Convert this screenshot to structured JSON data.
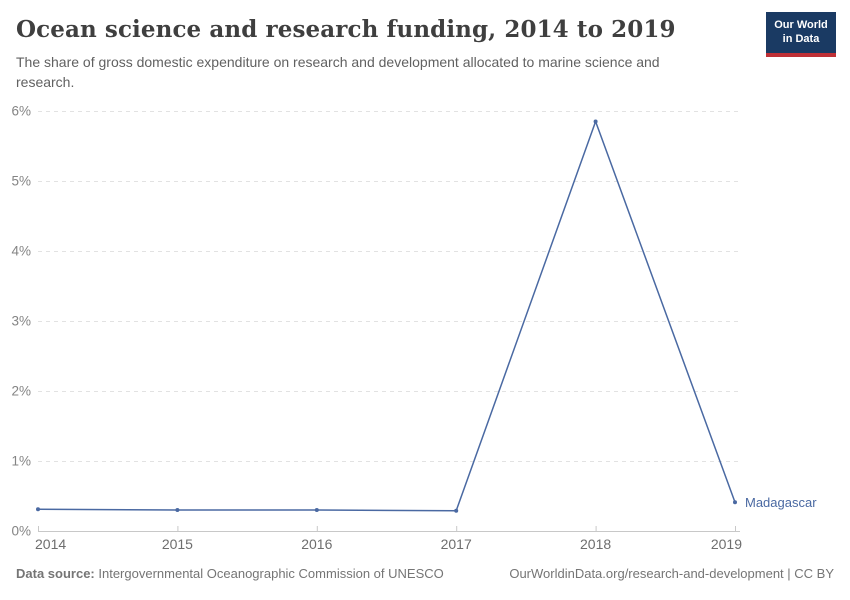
{
  "header": {
    "title": "Ocean science and research funding, 2014 to 2019",
    "subtitle": "The share of gross domestic expenditure on research and development allocated to marine science and research.",
    "logo": {
      "line1": "Our World",
      "line2": "in Data",
      "bg_color": "#1a3a63",
      "accent_color": "#bf3036"
    }
  },
  "chart_data": {
    "type": "line",
    "title": "Ocean science and research funding, 2014 to 2019",
    "x": [
      2014,
      2015,
      2016,
      2017,
      2018,
      2019
    ],
    "series": [
      {
        "name": "Madagascar",
        "values": [
          0.31,
          0.3,
          0.3,
          0.29,
          5.85,
          0.41
        ],
        "color": "#4a69a2"
      }
    ],
    "xlabel": "",
    "ylabel": "",
    "ylim": [
      0,
      6
    ],
    "ytick_labels": [
      "0%",
      "1%",
      "2%",
      "3%",
      "4%",
      "5%",
      "6%"
    ],
    "xtick_labels": [
      "2014",
      "2015",
      "2016",
      "2017",
      "2018",
      "2019"
    ],
    "grid": "horizontal-dashed",
    "legend_position": "end-of-line-label",
    "end_label": "Madagascar"
  },
  "footer": {
    "source_label": "Data source:",
    "source_text": "Intergovernmental Oceanographic Commission of UNESCO",
    "credit": "OurWorldinData.org/research-and-development | CC BY"
  }
}
